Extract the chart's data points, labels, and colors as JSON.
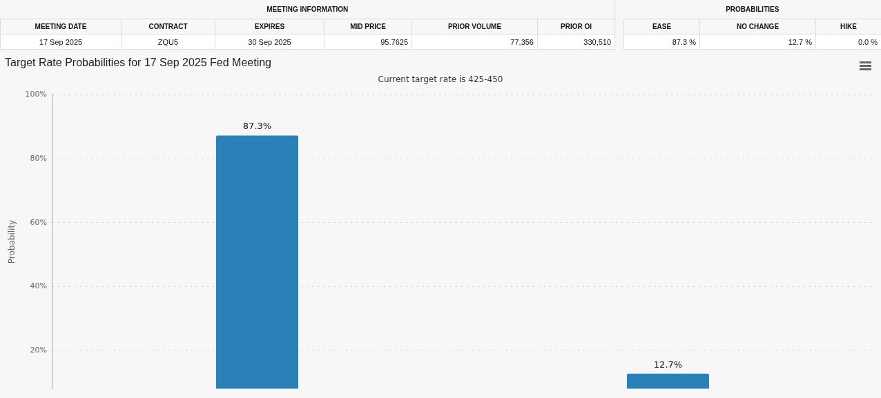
{
  "chart_data": [
    {
      "type": "other",
      "title": "MEETING INFORMATION",
      "categories": [
        "MEETING DATE",
        "CONTRACT",
        "EXPIRES",
        "MID PRICE",
        "PRIOR VOLUME",
        "PRIOR OI"
      ],
      "annotations": [
        "17 Sep 2025",
        "ZQU5",
        "30 Sep 2025",
        "95.7625",
        "77,356",
        "330,510"
      ]
    },
    {
      "type": "other",
      "title": "PROBABILITIES",
      "categories": [
        "EASE",
        "NO CHANGE",
        "HIKE"
      ],
      "annotations": [
        "87.3 %",
        "12.7 %",
        "0.0 %"
      ]
    },
    {
      "type": "bar",
      "title": "Target Rate Probabilities for 17 Sep 2025 Fed Meeting",
      "subtitle": "Current target rate is 425-450",
      "ylabel": "Probability",
      "categories": [
        null,
        null
      ],
      "values": [
        87.3,
        12.7
      ],
      "color": "#2a80b9",
      "value_labels": [
        "87.3%",
        "12.7%"
      ],
      "ylim": [
        8,
        100
      ],
      "yticks": [
        {
          "value": 20,
          "label": "20%"
        },
        {
          "value": 40,
          "label": "40%"
        },
        {
          "value": 60,
          "label": "60%"
        },
        {
          "value": 80,
          "label": "80%"
        },
        {
          "value": 100,
          "label": "100%"
        }
      ],
      "grid": "y",
      "tick_labels": "y"
    }
  ]
}
